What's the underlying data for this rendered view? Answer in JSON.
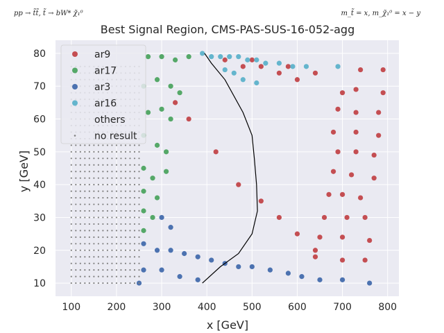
{
  "chart_data": {
    "type": "scatter",
    "title": "Best Signal Region, CMS-PAS-SUS-16-052-agg",
    "top_left_annotation": "pp → t̃t̃, t̃ → bW* χ̃₁⁰",
    "top_right_annotation": "m_t̃ = x, m_χ̃₁⁰ = x − y",
    "xlabel": "x [GeV]",
    "ylabel": "y [GeV]",
    "xlim": [
      65,
      825
    ],
    "ylim": [
      6,
      84
    ],
    "xticks": [
      100,
      200,
      300,
      400,
      500,
      600,
      700,
      800
    ],
    "yticks": [
      10,
      20,
      30,
      40,
      50,
      60,
      70,
      80
    ],
    "grid": true,
    "legend_position": "upper-left",
    "legend": [
      "ar9",
      "ar17",
      "ar3",
      "ar16",
      "others",
      "no result"
    ],
    "colors": {
      "ar9": "#c44e52",
      "ar17": "#55a868",
      "ar3": "#4c72b0",
      "ar16": "#64b5cd",
      "no result": "#808080",
      "plot_background": "#eaeaf2",
      "grid": "#ffffff",
      "exclusion_line": "#000000"
    },
    "series": [
      {
        "name": "ar9",
        "points": [
          [
            440,
            78
          ],
          [
            480,
            76
          ],
          [
            500,
            78
          ],
          [
            520,
            76
          ],
          [
            560,
            74
          ],
          [
            580,
            76
          ],
          [
            600,
            72
          ],
          [
            640,
            74
          ],
          [
            700,
            68
          ],
          [
            740,
            75
          ],
          [
            790,
            75
          ],
          [
            730,
            69
          ],
          [
            790,
            68
          ],
          [
            690,
            63
          ],
          [
            730,
            62
          ],
          [
            780,
            62
          ],
          [
            680,
            56
          ],
          [
            730,
            56
          ],
          [
            780,
            55
          ],
          [
            690,
            50
          ],
          [
            730,
            50
          ],
          [
            770,
            49
          ],
          [
            680,
            44
          ],
          [
            720,
            43
          ],
          [
            770,
            42
          ],
          [
            670,
            37
          ],
          [
            700,
            37
          ],
          [
            740,
            36
          ],
          [
            660,
            30
          ],
          [
            710,
            30
          ],
          [
            750,
            30
          ],
          [
            650,
            24
          ],
          [
            700,
            24
          ],
          [
            760,
            23
          ],
          [
            640,
            18
          ],
          [
            700,
            17
          ],
          [
            750,
            17
          ],
          [
            330,
            65
          ],
          [
            360,
            60
          ],
          [
            420,
            50
          ],
          [
            470,
            40
          ],
          [
            520,
            35
          ],
          [
            560,
            30
          ],
          [
            600,
            25
          ],
          [
            640,
            20
          ]
        ]
      },
      {
        "name": "ar17",
        "points": [
          [
            270,
            79
          ],
          [
            300,
            79
          ],
          [
            330,
            78
          ],
          [
            360,
            79
          ],
          [
            260,
            70
          ],
          [
            290,
            72
          ],
          [
            320,
            70
          ],
          [
            340,
            68
          ],
          [
            270,
            62
          ],
          [
            300,
            63
          ],
          [
            320,
            60
          ],
          [
            260,
            55
          ],
          [
            290,
            52
          ],
          [
            310,
            50
          ],
          [
            260,
            45
          ],
          [
            280,
            42
          ],
          [
            310,
            44
          ],
          [
            260,
            38
          ],
          [
            290,
            36
          ],
          [
            260,
            32
          ],
          [
            280,
            30
          ],
          [
            260,
            26
          ]
        ]
      },
      {
        "name": "ar3",
        "points": [
          [
            260,
            22
          ],
          [
            290,
            20
          ],
          [
            320,
            20
          ],
          [
            350,
            19
          ],
          [
            380,
            18
          ],
          [
            410,
            17
          ],
          [
            440,
            16
          ],
          [
            470,
            15
          ],
          [
            500,
            15
          ],
          [
            540,
            14
          ],
          [
            580,
            13
          ],
          [
            610,
            12
          ],
          [
            650,
            11
          ],
          [
            700,
            11
          ],
          [
            760,
            10
          ],
          [
            260,
            14
          ],
          [
            300,
            14
          ],
          [
            340,
            12
          ],
          [
            380,
            11
          ],
          [
            250,
            10
          ],
          [
            300,
            30
          ],
          [
            320,
            27
          ]
        ]
      },
      {
        "name": "ar16",
        "points": [
          [
            390,
            80
          ],
          [
            410,
            79
          ],
          [
            430,
            79
          ],
          [
            450,
            79
          ],
          [
            470,
            79
          ],
          [
            490,
            78
          ],
          [
            510,
            78
          ],
          [
            530,
            77
          ],
          [
            560,
            77
          ],
          [
            590,
            76
          ],
          [
            620,
            76
          ],
          [
            690,
            76
          ],
          [
            440,
            75
          ],
          [
            460,
            74
          ],
          [
            480,
            72
          ],
          [
            510,
            71
          ]
        ]
      },
      {
        "name": "others",
        "points": []
      },
      {
        "name": "no result",
        "region": {
          "x": [
            100,
            250
          ],
          "y": [
            10,
            76
          ]
        }
      }
    ],
    "exclusion_contour": [
      [
        390,
        10
      ],
      [
        430,
        15
      ],
      [
        470,
        19
      ],
      [
        500,
        25
      ],
      [
        512,
        32
      ],
      [
        510,
        40
      ],
      [
        505,
        48
      ],
      [
        500,
        55
      ],
      [
        480,
        62
      ],
      [
        440,
        72
      ],
      [
        410,
        77
      ],
      [
        395,
        80
      ]
    ]
  }
}
